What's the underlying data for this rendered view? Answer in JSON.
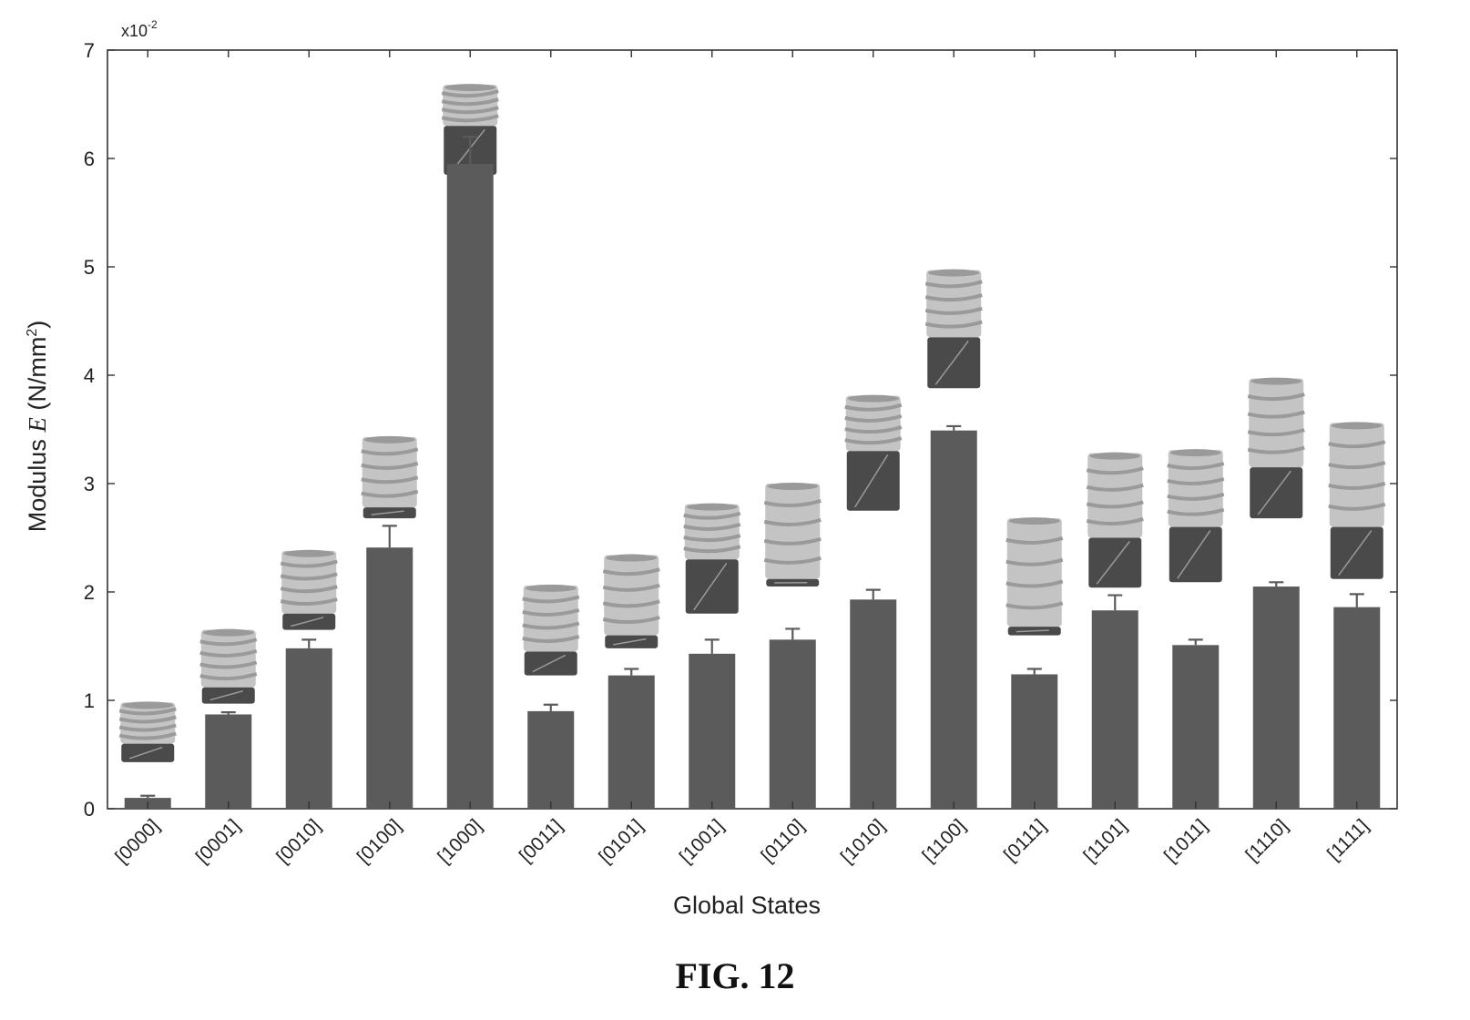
{
  "caption": "FIG. 12",
  "colors": {
    "bar": "#5b5b5b",
    "axis": "#333333",
    "icon_light": "#c4c4c4",
    "icon_mid": "#9a9a9a",
    "icon_dark": "#4a4a4a"
  },
  "chart_data": {
    "type": "bar",
    "xlabel": "Global States",
    "ylabel": "Modulus",
    "ylabel_var": "E",
    "ylabel_unit_pre": " (N/mm",
    "ylabel_unit_sup": "2",
    "ylabel_unit_post": ")",
    "multiplier_base": "x10",
    "multiplier_exp": "-2",
    "ylim": [
      0,
      7
    ],
    "yticks": [
      "0",
      "1",
      "2",
      "3",
      "4",
      "5",
      "6",
      "7"
    ],
    "grid": false,
    "legend": "none",
    "categories": [
      "[0000]",
      "[0001]",
      "[0010]",
      "[0100]",
      "[1000]",
      "[0011]",
      "[0101]",
      "[1001]",
      "[0110]",
      "[1010]",
      "[1100]",
      "[0111]",
      "[1101]",
      "[1011]",
      "[1110]",
      "[1111]"
    ],
    "values": [
      0.1,
      0.87,
      1.48,
      2.41,
      5.95,
      0.9,
      1.23,
      1.43,
      1.56,
      1.93,
      3.49,
      1.24,
      1.83,
      1.51,
      2.05,
      1.86
    ],
    "errors": [
      0.02,
      0.02,
      0.08,
      0.2,
      0.25,
      0.06,
      0.06,
      0.13,
      0.1,
      0.09,
      0.04,
      0.05,
      0.14,
      0.05,
      0.04,
      0.12
    ],
    "icons": [
      {
        "bottom": 0.43,
        "top": 0.98,
        "dark": [
          0.43,
          0.6
        ]
      },
      {
        "bottom": 0.97,
        "top": 1.65,
        "dark": [
          0.97,
          1.12
        ]
      },
      {
        "bottom": 1.65,
        "top": 2.38,
        "dark": [
          1.65,
          1.8
        ]
      },
      {
        "bottom": 2.68,
        "top": 3.43,
        "dark": [
          2.68,
          2.78
        ]
      },
      {
        "bottom": 5.85,
        "top": 6.68,
        "dark": [
          5.85,
          6.3
        ]
      },
      {
        "bottom": 1.23,
        "top": 2.06,
        "dark": [
          1.23,
          1.45
        ]
      },
      {
        "bottom": 1.48,
        "top": 2.34,
        "dark": [
          1.48,
          1.6
        ]
      },
      {
        "bottom": 1.8,
        "top": 2.81,
        "dark": [
          1.8,
          2.3
        ]
      },
      {
        "bottom": 2.05,
        "top": 3.0,
        "dark": [
          2.05,
          2.12
        ]
      },
      {
        "bottom": 2.75,
        "top": 3.81,
        "dark": [
          2.75,
          3.3
        ]
      },
      {
        "bottom": 3.88,
        "top": 4.97,
        "dark": [
          3.88,
          4.35
        ]
      },
      {
        "bottom": 1.6,
        "top": 2.68,
        "dark": [
          1.6,
          1.68
        ]
      },
      {
        "bottom": 2.04,
        "top": 3.28,
        "dark": [
          2.04,
          2.5
        ]
      },
      {
        "bottom": 2.09,
        "top": 3.31,
        "dark": [
          2.09,
          2.6
        ]
      },
      {
        "bottom": 2.68,
        "top": 3.97,
        "dark": [
          2.68,
          3.15
        ]
      },
      {
        "bottom": 2.12,
        "top": 3.56,
        "dark": [
          2.12,
          2.6
        ]
      }
    ]
  }
}
